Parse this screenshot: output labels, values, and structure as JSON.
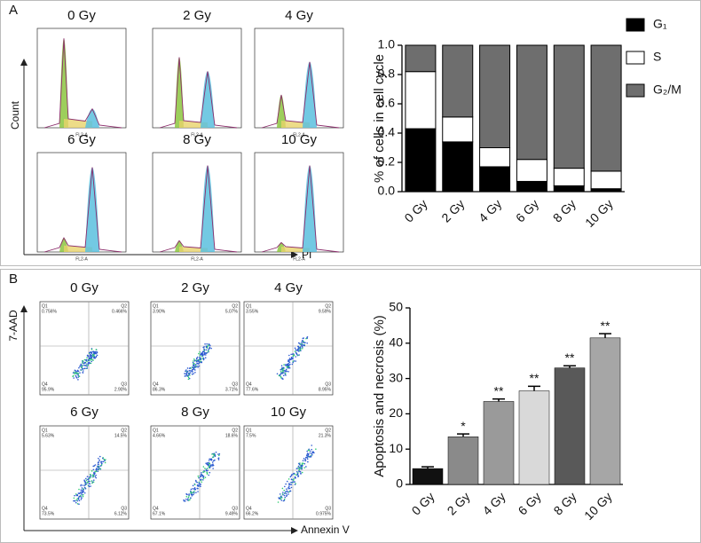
{
  "panels": [
    {
      "label": "A",
      "y_label": "Count",
      "x_label": "PI",
      "plot_x_label": "FL2-A",
      "plots": [
        "0 Gy",
        "2 Gy",
        "4 Gy",
        "6 Gy",
        "8 Gy",
        "10 Gy"
      ]
    },
    {
      "label": "B",
      "y_label": "7-AAD",
      "x_label": "Annexin V",
      "plots": [
        {
          "title": "0 Gy",
          "quadrants": [
            {
              "name": "Q1",
              "value": "0.756%"
            },
            {
              "name": "Q2",
              "value": "0.466%"
            },
            {
              "name": "Q4",
              "value": "95.9%"
            },
            {
              "name": "Q3",
              "value": "2.90%"
            }
          ]
        },
        {
          "title": "2 Gy",
          "quadrants": [
            {
              "name": "Q1",
              "value": "3.90%"
            },
            {
              "name": "Q2",
              "value": "5.07%"
            },
            {
              "name": "Q4",
              "value": "86.3%"
            },
            {
              "name": "Q3",
              "value": "3.71%"
            }
          ]
        },
        {
          "title": "4 Gy",
          "quadrants": [
            {
              "name": "Q1",
              "value": "3.55%"
            },
            {
              "name": "Q2",
              "value": "9.59%"
            },
            {
              "name": "Q4",
              "value": "77.6%"
            },
            {
              "name": "Q3",
              "value": "8.95%"
            }
          ]
        },
        {
          "title": "6 Gy",
          "quadrants": [
            {
              "name": "Q1",
              "value": "5.63%"
            },
            {
              "name": "Q2",
              "value": "14.5%"
            },
            {
              "name": "Q4",
              "value": "73.5%"
            },
            {
              "name": "Q3",
              "value": "6.12%"
            }
          ]
        },
        {
          "title": "8 Gy",
          "quadrants": [
            {
              "name": "Q1",
              "value": "4.66%"
            },
            {
              "name": "Q2",
              "value": "18.6%"
            },
            {
              "name": "Q4",
              "value": "67.1%"
            },
            {
              "name": "Q3",
              "value": "9.49%"
            }
          ]
        },
        {
          "title": "10 Gy",
          "quadrants": [
            {
              "name": "Q1",
              "value": "7.5%"
            },
            {
              "name": "Q2",
              "value": "21.3%"
            },
            {
              "name": "Q4",
              "value": "66.2%"
            },
            {
              "name": "Q3",
              "value": "0.975%"
            }
          ]
        }
      ]
    }
  ],
  "chart_data": [
    {
      "type": "stacked_bar",
      "y_label": "% of cells in cell cycle",
      "categories": [
        "0 Gy",
        "2 Gy",
        "4 Gy",
        "6 Gy",
        "8 Gy",
        "10 Gy"
      ],
      "series": [
        {
          "name": "G₁",
          "color": "#000000",
          "values": [
            0.43,
            0.34,
            0.17,
            0.07,
            0.04,
            0.02
          ]
        },
        {
          "name": "S",
          "color": "#ffffff",
          "values": [
            0.39,
            0.17,
            0.13,
            0.15,
            0.12,
            0.12
          ]
        },
        {
          "name": "G₂/M",
          "color": "#6e6e6e",
          "values": [
            0.18,
            0.49,
            0.7,
            0.78,
            0.84,
            0.86
          ]
        }
      ],
      "ylim": [
        0,
        1
      ],
      "yticks": [
        {
          "value": 0,
          "label": "0.0"
        },
        0.2,
        0.4,
        0.6,
        0.8,
        {
          "value": 1,
          "label": "1.0"
        }
      ],
      "legend": "right"
    },
    {
      "type": "bar_error",
      "y_label": "Apoptosis and necrosis (%)",
      "categories": [
        "0 Gy",
        "2 Gy",
        "4 Gy",
        "6 Gy",
        "8 Gy",
        "10 Gy"
      ],
      "values": [
        4.5,
        13.5,
        23.5,
        26.5,
        33,
        41.5
      ],
      "errors": [
        0.5,
        0.8,
        0.7,
        1.3,
        0.6,
        1.2
      ],
      "colors": [
        "#111111",
        "#8a8a8a",
        "#9a9a9a",
        "#d9d9d9",
        "#595959",
        "#a6a6a6"
      ],
      "significance": [
        null,
        "*",
        "**",
        "**",
        "**",
        "**"
      ],
      "ylim": [
        0,
        50
      ],
      "yticks": [
        0,
        10,
        20,
        30,
        40,
        50
      ]
    }
  ]
}
